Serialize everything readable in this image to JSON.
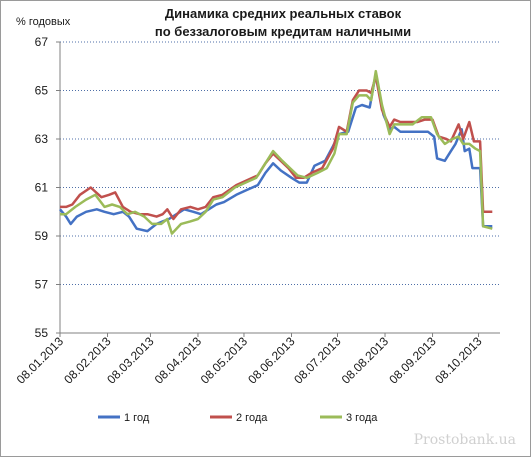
{
  "chart_data": {
    "type": "line",
    "title": [
      "Динамика средних реальных ставок",
      "по беззалоговым кредитам наличными"
    ],
    "ylabel": "% годовых",
    "xlabel": "",
    "ylim": [
      55,
      67
    ],
    "yticks": [
      55,
      57,
      59,
      61,
      63,
      65,
      67
    ],
    "xlim": [
      "2013-01-08",
      "2013-10-22"
    ],
    "xticks": [
      "08.01.2013",
      "08.02.2013",
      "08.03.2013",
      "08.04.2013",
      "08.05.2013",
      "08.06.2013",
      "08.07.2013",
      "08.08.2013",
      "08.09.2013",
      "08.10.2013"
    ],
    "grid": "horizontal-dotted",
    "legend_position": "bottom",
    "series": [
      {
        "name": "1 год",
        "color": "#4472c4",
        "points": [
          [
            "2013-01-08",
            60.1
          ],
          [
            "2013-01-12",
            59.8
          ],
          [
            "2013-01-15",
            59.5
          ],
          [
            "2013-01-19",
            59.8
          ],
          [
            "2013-01-25",
            60.0
          ],
          [
            "2013-02-01",
            60.1
          ],
          [
            "2013-02-06",
            60.0
          ],
          [
            "2013-02-12",
            59.9
          ],
          [
            "2013-02-18",
            60.0
          ],
          [
            "2013-02-22",
            59.8
          ],
          [
            "2013-02-27",
            59.3
          ],
          [
            "2013-03-06",
            59.2
          ],
          [
            "2013-03-12",
            59.5
          ],
          [
            "2013-03-16",
            59.6
          ],
          [
            "2013-03-20",
            59.7
          ],
          [
            "2013-03-25",
            59.9
          ],
          [
            "2013-03-30",
            60.1
          ],
          [
            "2013-04-05",
            60.0
          ],
          [
            "2013-04-10",
            59.9
          ],
          [
            "2013-04-15",
            60.1
          ],
          [
            "2013-04-20",
            60.3
          ],
          [
            "2013-04-25",
            60.4
          ],
          [
            "2013-05-03",
            60.7
          ],
          [
            "2013-05-10",
            60.9
          ],
          [
            "2013-05-17",
            61.1
          ],
          [
            "2013-05-22",
            61.6
          ],
          [
            "2013-05-27",
            62.0
          ],
          [
            "2013-06-01",
            61.7
          ],
          [
            "2013-06-08",
            61.4
          ],
          [
            "2013-06-13",
            61.2
          ],
          [
            "2013-06-18",
            61.2
          ],
          [
            "2013-06-23",
            61.9
          ],
          [
            "2013-06-30",
            62.1
          ],
          [
            "2013-07-05",
            62.7
          ],
          [
            "2013-07-09",
            63.2
          ],
          [
            "2013-07-15",
            63.3
          ],
          [
            "2013-07-20",
            64.3
          ],
          [
            "2013-07-24",
            64.4
          ],
          [
            "2013-07-29",
            64.3
          ],
          [
            "2013-08-02",
            65.7
          ],
          [
            "2013-08-07",
            64.0
          ],
          [
            "2013-08-11",
            63.4
          ],
          [
            "2013-08-14",
            63.5
          ],
          [
            "2013-08-18",
            63.3
          ],
          [
            "2013-08-24",
            63.3
          ],
          [
            "2013-08-30",
            63.3
          ],
          [
            "2013-09-05",
            63.3
          ],
          [
            "2013-09-09",
            63.1
          ],
          [
            "2013-09-11",
            62.2
          ],
          [
            "2013-09-16",
            62.1
          ],
          [
            "2013-09-20",
            62.5
          ],
          [
            "2013-09-23",
            62.8
          ],
          [
            "2013-09-27",
            63.4
          ],
          [
            "2013-09-29",
            62.5
          ],
          [
            "2013-10-02",
            62.6
          ],
          [
            "2013-10-04",
            61.8
          ],
          [
            "2013-10-09",
            61.8
          ],
          [
            "2013-10-11",
            59.4
          ],
          [
            "2013-10-17",
            59.4
          ]
        ]
      },
      {
        "name": "2 года",
        "color": "#c0504d",
        "points": [
          [
            "2013-01-08",
            60.2
          ],
          [
            "2013-01-12",
            60.2
          ],
          [
            "2013-01-16",
            60.3
          ],
          [
            "2013-01-21",
            60.7
          ],
          [
            "2013-01-28",
            61.0
          ],
          [
            "2013-02-04",
            60.6
          ],
          [
            "2013-02-09",
            60.7
          ],
          [
            "2013-02-13",
            60.8
          ],
          [
            "2013-02-18",
            60.2
          ],
          [
            "2013-02-23",
            60.0
          ],
          [
            "2013-03-01",
            59.9
          ],
          [
            "2013-03-06",
            59.9
          ],
          [
            "2013-03-12",
            59.8
          ],
          [
            "2013-03-16",
            59.9
          ],
          [
            "2013-03-19",
            60.1
          ],
          [
            "2013-03-23",
            59.7
          ],
          [
            "2013-03-28",
            60.1
          ],
          [
            "2013-04-03",
            60.2
          ],
          [
            "2013-04-08",
            60.1
          ],
          [
            "2013-04-13",
            60.2
          ],
          [
            "2013-04-18",
            60.6
          ],
          [
            "2013-04-24",
            60.7
          ],
          [
            "2013-05-03",
            61.1
          ],
          [
            "2013-05-10",
            61.3
          ],
          [
            "2013-05-17",
            61.5
          ],
          [
            "2013-05-22",
            62.0
          ],
          [
            "2013-05-27",
            62.4
          ],
          [
            "2013-06-01",
            62.1
          ],
          [
            "2013-06-06",
            61.8
          ],
          [
            "2013-06-11",
            61.4
          ],
          [
            "2013-06-16",
            61.4
          ],
          [
            "2013-06-21",
            61.6
          ],
          [
            "2013-06-28",
            61.8
          ],
          [
            "2013-07-05",
            62.6
          ],
          [
            "2013-07-09",
            63.5
          ],
          [
            "2013-07-14",
            63.3
          ],
          [
            "2013-07-18",
            64.6
          ],
          [
            "2013-07-22",
            65.0
          ],
          [
            "2013-07-27",
            65.0
          ],
          [
            "2013-07-30",
            64.9
          ],
          [
            "2013-08-02",
            65.6
          ],
          [
            "2013-08-06",
            64.2
          ],
          [
            "2013-08-11",
            63.5
          ],
          [
            "2013-08-14",
            63.8
          ],
          [
            "2013-08-18",
            63.7
          ],
          [
            "2013-08-23",
            63.7
          ],
          [
            "2013-08-29",
            63.7
          ],
          [
            "2013-09-03",
            63.8
          ],
          [
            "2013-09-08",
            63.8
          ],
          [
            "2013-09-12",
            63.1
          ],
          [
            "2013-09-17",
            63.0
          ],
          [
            "2013-09-20",
            62.9
          ],
          [
            "2013-09-25",
            63.6
          ],
          [
            "2013-09-28",
            63.0
          ],
          [
            "2013-10-02",
            63.7
          ],
          [
            "2013-10-05",
            62.9
          ],
          [
            "2013-10-09",
            62.9
          ],
          [
            "2013-10-11",
            60.0
          ],
          [
            "2013-10-17",
            60.0
          ]
        ]
      },
      {
        "name": "3 года",
        "color": "#9bbb59",
        "points": [
          [
            "2013-01-08",
            59.9
          ],
          [
            "2013-01-12",
            59.9
          ],
          [
            "2013-01-18",
            60.2
          ],
          [
            "2013-01-25",
            60.5
          ],
          [
            "2013-01-31",
            60.7
          ],
          [
            "2013-02-06",
            60.2
          ],
          [
            "2013-02-11",
            60.3
          ],
          [
            "2013-02-16",
            60.2
          ],
          [
            "2013-02-21",
            59.9
          ],
          [
            "2013-02-26",
            60.0
          ],
          [
            "2013-03-04",
            59.8
          ],
          [
            "2013-03-09",
            59.5
          ],
          [
            "2013-03-15",
            59.5
          ],
          [
            "2013-03-19",
            59.7
          ],
          [
            "2013-03-22",
            59.1
          ],
          [
            "2013-03-28",
            59.5
          ],
          [
            "2013-04-03",
            59.6
          ],
          [
            "2013-04-08",
            59.7
          ],
          [
            "2013-04-13",
            60.0
          ],
          [
            "2013-04-18",
            60.5
          ],
          [
            "2013-04-24",
            60.6
          ],
          [
            "2013-05-02",
            61.0
          ],
          [
            "2013-05-09",
            61.2
          ],
          [
            "2013-05-16",
            61.4
          ],
          [
            "2013-05-22",
            62.0
          ],
          [
            "2013-05-27",
            62.5
          ],
          [
            "2013-06-02",
            62.1
          ],
          [
            "2013-06-07",
            61.8
          ],
          [
            "2013-06-12",
            61.5
          ],
          [
            "2013-06-18",
            61.4
          ],
          [
            "2013-06-25",
            61.6
          ],
          [
            "2013-07-01",
            61.8
          ],
          [
            "2013-07-06",
            62.4
          ],
          [
            "2013-07-09",
            63.2
          ],
          [
            "2013-07-14",
            63.2
          ],
          [
            "2013-07-18",
            64.5
          ],
          [
            "2013-07-22",
            64.8
          ],
          [
            "2013-07-27",
            64.8
          ],
          [
            "2013-07-30",
            64.6
          ],
          [
            "2013-08-02",
            65.8
          ],
          [
            "2013-08-06",
            64.4
          ],
          [
            "2013-08-11",
            63.2
          ],
          [
            "2013-08-14",
            63.6
          ],
          [
            "2013-08-20",
            63.6
          ],
          [
            "2013-08-26",
            63.6
          ],
          [
            "2013-09-01",
            63.9
          ],
          [
            "2013-09-07",
            63.9
          ],
          [
            "2013-09-11",
            63.2
          ],
          [
            "2013-09-16",
            62.8
          ],
          [
            "2013-09-21",
            63.0
          ],
          [
            "2013-09-25",
            63.1
          ],
          [
            "2013-09-28",
            62.8
          ],
          [
            "2013-10-02",
            62.8
          ],
          [
            "2013-10-06",
            62.6
          ],
          [
            "2013-10-09",
            62.5
          ],
          [
            "2013-10-11",
            59.4
          ],
          [
            "2013-10-17",
            59.3
          ]
        ]
      }
    ]
  },
  "watermark": "Prostobank.ua",
  "colors": {
    "grid": "#4f6fa8",
    "axis": "#808080"
  }
}
